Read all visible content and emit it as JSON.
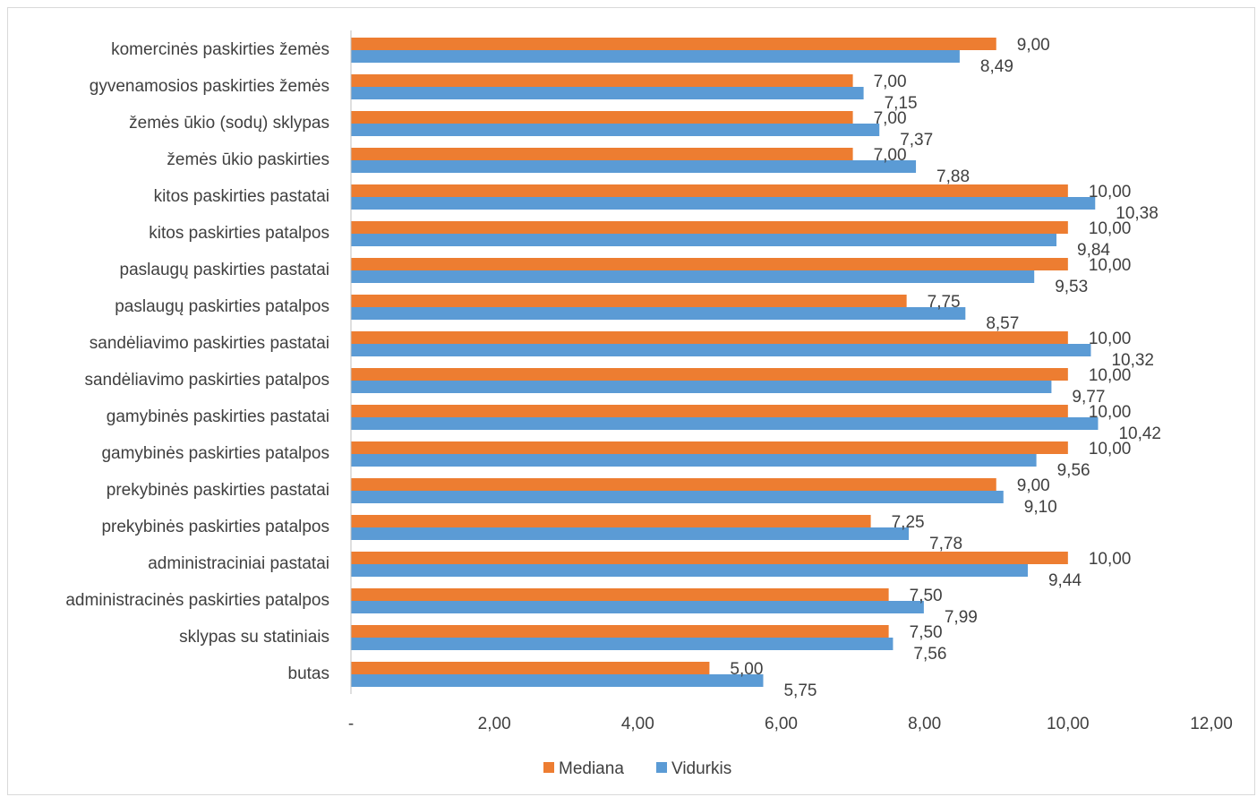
{
  "chart_data": {
    "type": "bar",
    "orientation": "horizontal",
    "categories": [
      "komercinės paskirties žemės",
      "gyvenamosios paskirties žemės",
      "žemės ūkio (sodų) sklypas",
      "žemės ūkio paskirties",
      "kitos paskirties pastatai",
      "kitos paskirties patalpos",
      "paslaugų paskirties pastatai",
      "paslaugų paskirties patalpos",
      "sandėliavimo paskirties pastatai",
      "sandėliavimo paskirties patalpos",
      "gamybinės paskirties pastatai",
      "gamybinės paskirties patalpos",
      "prekybinės paskirties pastatai",
      "prekybinės paskirties patalpos",
      "administraciniai pastatai",
      "administracinės paskirties patalpos",
      "sklypas su statiniais",
      "butas"
    ],
    "series": [
      {
        "name": "Mediana",
        "color": "#ED7D31",
        "values": [
          9.0,
          7.0,
          7.0,
          7.0,
          10.0,
          10.0,
          10.0,
          7.75,
          10.0,
          10.0,
          10.0,
          10.0,
          9.0,
          7.25,
          10.0,
          7.5,
          7.5,
          5.0
        ],
        "labels": [
          "9,00",
          "7,00",
          "7,00",
          "7,00",
          "10,00",
          "10,00",
          "10,00",
          "7,75",
          "10,00",
          "10,00",
          "10,00",
          "10,00",
          "9,00",
          "7,25",
          "10,00",
          "7,50",
          "7,50",
          "5,00"
        ]
      },
      {
        "name": "Vidurkis",
        "color": "#5B9BD5",
        "values": [
          8.49,
          7.15,
          7.37,
          7.88,
          10.38,
          9.84,
          9.53,
          8.57,
          10.32,
          9.77,
          10.42,
          9.56,
          9.1,
          7.78,
          9.44,
          7.99,
          7.56,
          5.75
        ],
        "labels": [
          "8,49",
          "7,15",
          "7,37",
          "7,88",
          "10,38",
          "9,84",
          "9,53",
          "8,57",
          "10,32",
          "9,77",
          "10,42",
          "9,56",
          "9,10",
          "7,78",
          "9,44",
          "7,99",
          "7,56",
          "5,75"
        ]
      }
    ],
    "xlim": [
      0,
      12
    ],
    "x_ticks": [
      0,
      2,
      4,
      6,
      8,
      10,
      12
    ],
    "x_tick_labels": [
      "-",
      "2,00",
      "4,00",
      "6,00",
      "8,00",
      "10,00",
      "12,00"
    ],
    "grid": false,
    "legend_position": "bottom",
    "title": "",
    "xlabel": "",
    "ylabel": ""
  }
}
